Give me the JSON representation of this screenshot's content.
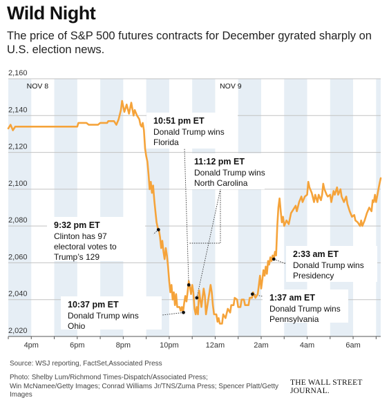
{
  "title": "Wild Night",
  "subtitle": "The price of S&P 500 futures contracts for December gyrated sharply on U.S. election news.",
  "source": "Source: WSJ reporting, FactSet,Associated Press",
  "credits": {
    "line1": "Photo: Shelby Lum/Richmond Times-Dispatch/Associated Press;",
    "line2": "Win McNamee/Getty Images; Conrad Williams Jr/TNS/Zuma Press; Spencer Platt/Getty Images"
  },
  "logo": "THE WALL STREET JOURNAL.",
  "chart_data": {
    "type": "line",
    "title": "",
    "xlabel": "",
    "ylabel": "",
    "x_unit": "hours after 3pm ET, Nov 8",
    "xlim": [
      0,
      16.2
    ],
    "ylim": [
      2020,
      2160
    ],
    "yticks": [
      2020,
      2040,
      2060,
      2080,
      2100,
      2120,
      2140,
      2160
    ],
    "ytick_labels": [
      "2,020",
      "2,040",
      "2,060",
      "2,080",
      "2,100",
      "2,120",
      "2,140",
      "2,160"
    ],
    "xticks": [
      1,
      3,
      5,
      7,
      9,
      11,
      13,
      15
    ],
    "xtick_labels": [
      "4pm",
      "6pm",
      "8pm",
      "10pm",
      "12am",
      "2am",
      "4am",
      "6am"
    ],
    "day_labels": [
      {
        "x": 0.8,
        "text": "NOV 8"
      },
      {
        "x": 9.2,
        "text": "NOV 9"
      }
    ],
    "grid": true,
    "line_color": "#f5a33a",
    "series": [
      {
        "points": [
          [
            0,
            2133
          ],
          [
            0.1,
            2135
          ],
          [
            0.2,
            2132
          ],
          [
            0.3,
            2134
          ],
          [
            1.5,
            2134
          ],
          [
            3.0,
            2134
          ],
          [
            3.05,
            2136
          ],
          [
            3.4,
            2136
          ],
          [
            3.5,
            2135
          ],
          [
            3.9,
            2135
          ],
          [
            4.0,
            2136
          ],
          [
            4.3,
            2136
          ],
          [
            4.35,
            2137
          ],
          [
            4.6,
            2137
          ],
          [
            4.7,
            2135
          ],
          [
            4.8,
            2138
          ],
          [
            4.9,
            2143
          ],
          [
            4.95,
            2148
          ],
          [
            5.05,
            2142
          ],
          [
            5.15,
            2146
          ],
          [
            5.25,
            2141
          ],
          [
            5.35,
            2147
          ],
          [
            5.45,
            2140
          ],
          [
            5.5,
            2143
          ],
          [
            5.6,
            2140
          ],
          [
            5.7,
            2138
          ],
          [
            5.75,
            2135
          ],
          [
            5.8,
            2134
          ],
          [
            5.85,
            2136
          ],
          [
            5.9,
            2132
          ],
          [
            5.95,
            2122
          ],
          [
            6.0,
            2118
          ],
          [
            6.05,
            2115
          ],
          [
            6.1,
            2108
          ],
          [
            6.15,
            2100
          ],
          [
            6.2,
            2104
          ],
          [
            6.25,
            2098
          ],
          [
            6.3,
            2102
          ],
          [
            6.35,
            2094
          ],
          [
            6.4,
            2088
          ],
          [
            6.45,
            2082
          ],
          [
            6.5,
            2079
          ],
          [
            6.55,
            2078
          ],
          [
            6.6,
            2074
          ],
          [
            6.65,
            2068
          ],
          [
            6.7,
            2072
          ],
          [
            6.75,
            2066
          ],
          [
            6.8,
            2062
          ],
          [
            6.85,
            2068
          ],
          [
            6.9,
            2064
          ],
          [
            6.95,
            2058
          ],
          [
            7.0,
            2050
          ],
          [
            7.05,
            2044
          ],
          [
            7.1,
            2048
          ],
          [
            7.15,
            2040
          ],
          [
            7.2,
            2044
          ],
          [
            7.25,
            2037
          ],
          [
            7.3,
            2043
          ],
          [
            7.35,
            2036
          ],
          [
            7.45,
            2036
          ],
          [
            7.5,
            2034
          ],
          [
            7.55,
            2036
          ],
          [
            7.6,
            2033
          ],
          [
            7.65,
            2038
          ],
          [
            7.7,
            2042
          ],
          [
            7.75,
            2039
          ],
          [
            7.8,
            2044
          ],
          [
            7.85,
            2050
          ],
          [
            7.9,
            2047
          ],
          [
            7.95,
            2043
          ],
          [
            8.0,
            2048
          ],
          [
            8.05,
            2044
          ],
          [
            8.1,
            2035
          ],
          [
            8.15,
            2032
          ],
          [
            8.2,
            2036
          ],
          [
            8.25,
            2032
          ],
          [
            8.3,
            2045
          ],
          [
            8.35,
            2040
          ],
          [
            8.4,
            2036
          ],
          [
            8.45,
            2041
          ],
          [
            8.5,
            2046
          ],
          [
            8.55,
            2042
          ],
          [
            8.6,
            2032
          ],
          [
            8.65,
            2036
          ],
          [
            8.7,
            2040
          ],
          [
            8.8,
            2048
          ],
          [
            8.85,
            2044
          ],
          [
            8.9,
            2037
          ],
          [
            8.95,
            2032
          ],
          [
            9.05,
            2032
          ],
          [
            9.1,
            2028
          ],
          [
            9.15,
            2030
          ],
          [
            9.2,
            2027
          ],
          [
            9.3,
            2027
          ],
          [
            9.35,
            2032
          ],
          [
            9.45,
            2030
          ],
          [
            9.55,
            2035
          ],
          [
            9.65,
            2033
          ],
          [
            9.7,
            2037
          ],
          [
            9.8,
            2037
          ],
          [
            9.85,
            2041
          ],
          [
            9.95,
            2040
          ],
          [
            10.0,
            2036
          ],
          [
            10.1,
            2036
          ],
          [
            10.15,
            2040
          ],
          [
            10.25,
            2040
          ],
          [
            10.3,
            2037
          ],
          [
            10.45,
            2037
          ],
          [
            10.5,
            2041
          ],
          [
            10.6,
            2041
          ],
          [
            10.65,
            2044
          ],
          [
            10.75,
            2041
          ],
          [
            10.85,
            2043
          ],
          [
            10.9,
            2048
          ],
          [
            10.95,
            2053
          ],
          [
            11.0,
            2046
          ],
          [
            11.05,
            2051
          ],
          [
            11.1,
            2056
          ],
          [
            11.15,
            2053
          ],
          [
            11.2,
            2058
          ],
          [
            11.25,
            2054
          ],
          [
            11.3,
            2061
          ],
          [
            11.35,
            2059
          ],
          [
            11.4,
            2063
          ],
          [
            11.45,
            2061
          ],
          [
            11.5,
            2064
          ],
          [
            11.55,
            2062
          ],
          [
            11.6,
            2066
          ],
          [
            11.65,
            2064
          ],
          [
            11.7,
            2080
          ],
          [
            11.75,
            2090
          ],
          [
            11.8,
            2095
          ],
          [
            11.85,
            2088
          ],
          [
            11.9,
            2082
          ],
          [
            11.95,
            2085
          ],
          [
            12.0,
            2080
          ],
          [
            12.1,
            2083
          ],
          [
            12.2,
            2081
          ],
          [
            12.3,
            2087
          ],
          [
            12.4,
            2089
          ],
          [
            12.5,
            2091
          ],
          [
            12.55,
            2088
          ],
          [
            12.65,
            2093
          ],
          [
            12.75,
            2096
          ],
          [
            12.8,
            2093
          ],
          [
            12.9,
            2096
          ],
          [
            13.0,
            2097
          ],
          [
            13.05,
            2104
          ],
          [
            13.1,
            2101
          ],
          [
            13.2,
            2098
          ],
          [
            13.3,
            2093
          ],
          [
            13.35,
            2097
          ],
          [
            13.45,
            2093
          ],
          [
            13.5,
            2097
          ],
          [
            13.6,
            2094
          ],
          [
            13.65,
            2097
          ],
          [
            13.7,
            2103
          ],
          [
            13.75,
            2100
          ],
          [
            13.85,
            2097
          ],
          [
            13.9,
            2096
          ],
          [
            14.0,
            2097
          ],
          [
            14.05,
            2093
          ],
          [
            14.15,
            2099
          ],
          [
            14.2,
            2097
          ],
          [
            14.3,
            2101
          ],
          [
            14.35,
            2097
          ],
          [
            14.45,
            2100
          ],
          [
            14.5,
            2096
          ],
          [
            14.6,
            2093
          ],
          [
            14.7,
            2096
          ],
          [
            14.75,
            2092
          ],
          [
            14.85,
            2088
          ],
          [
            14.95,
            2085
          ],
          [
            15.05,
            2086
          ],
          [
            15.1,
            2083
          ],
          [
            15.2,
            2082
          ],
          [
            15.3,
            2080
          ],
          [
            15.35,
            2083
          ],
          [
            15.4,
            2080
          ],
          [
            15.5,
            2083
          ],
          [
            15.6,
            2087
          ],
          [
            15.7,
            2090
          ],
          [
            15.8,
            2088
          ],
          [
            15.85,
            2094
          ],
          [
            15.9,
            2093
          ],
          [
            15.95,
            2097
          ],
          [
            16.0,
            2093
          ],
          [
            16.1,
            2100
          ],
          [
            16.15,
            2103
          ],
          [
            16.2,
            2106
          ]
        ]
      }
    ],
    "annotations": [
      {
        "time": "9:32 pm ET",
        "lines": [
          "Clinton has 97",
          "electoral votes to",
          "Trump’s 129"
        ],
        "x": 6.53,
        "y": 2078
      },
      {
        "time": "10:37 pm ET",
        "lines": [
          "Donald Trump wins",
          "Ohio"
        ],
        "x": 7.62,
        "y": 2033
      },
      {
        "time": "10:51 pm ET",
        "lines": [
          "Donald Trump wins",
          "Florida"
        ],
        "x": 7.85,
        "y": 2048
      },
      {
        "time": "11:12 pm ET",
        "lines": [
          "Donald Trump wins",
          "North Carolina"
        ],
        "x": 8.2,
        "y": 2041
      },
      {
        "time": "1:37 am ET",
        "lines": [
          "Donald Trump wins",
          "Pennsylvania"
        ],
        "x": 10.62,
        "y": 2043
      },
      {
        "time": "2:33 am ET",
        "lines": [
          "Donald Trump wins",
          "Presidency"
        ],
        "x": 11.55,
        "y": 2062
      }
    ]
  }
}
